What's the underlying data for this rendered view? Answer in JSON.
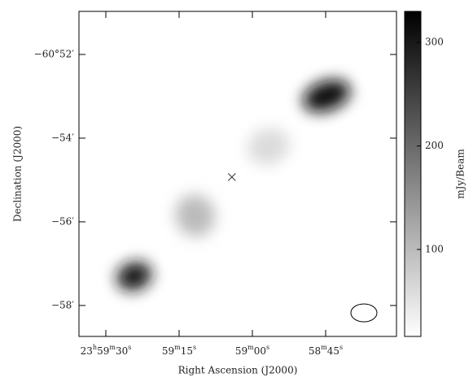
{
  "chart_data": {
    "type": "image",
    "xlabel": "Right Ascension (J2000)",
    "ylabel": "Declination (J2000)",
    "colorbar_label": "mJy/Beam",
    "xlim": [
      35.5,
      -29.5
    ],
    "xticks": [
      {
        "value": 30,
        "label": "23h59m30s"
      },
      {
        "value": 15,
        "label": "59m15s"
      },
      {
        "value": 0,
        "label": "59m00s"
      },
      {
        "value": -15,
        "label": "58m45s"
      }
    ],
    "ylim": [
      -58.74,
      -50.97
    ],
    "yticks": [
      {
        "value": -52,
        "label": "−60°52′"
      },
      {
        "value": -54,
        "label": "−54′"
      },
      {
        "value": -56,
        "label": "−56′"
      },
      {
        "value": -58,
        "label": "−58′"
      }
    ],
    "clim": [
      16,
      330
    ],
    "cticks": [
      100,
      200,
      300
    ],
    "sources": [
      {
        "x": -15.2,
        "y": -52.99,
        "peak": 320
      },
      {
        "x": 24.2,
        "y": -57.3,
        "peak": 300
      },
      {
        "x": 11.7,
        "y": -55.85,
        "peak": 100
      },
      {
        "x": -3.3,
        "y": -54.2,
        "peak": 60
      }
    ],
    "marker": {
      "x": 4.2,
      "y": -54.93
    }
  }
}
